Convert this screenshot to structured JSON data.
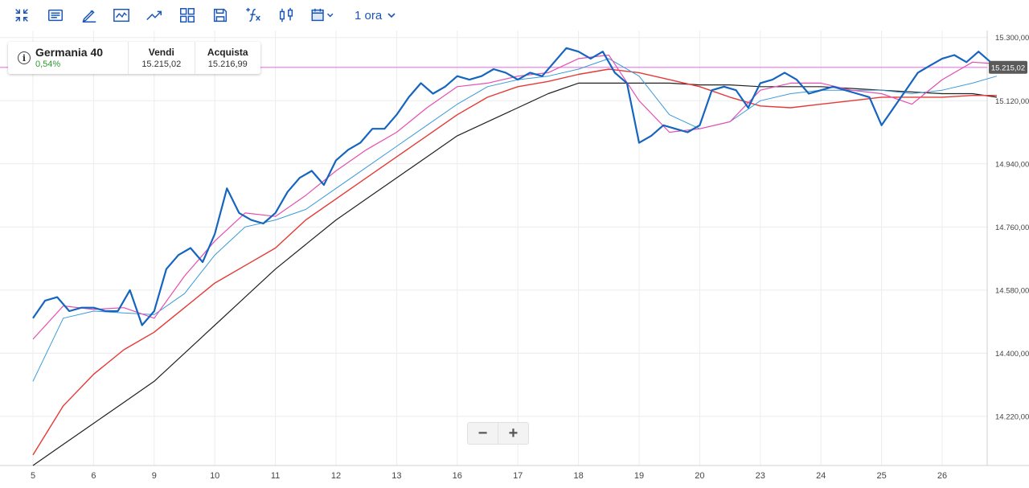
{
  "toolbar": {
    "icons": [
      "collapse-icon",
      "notes-icon",
      "pencil-icon",
      "indicator-icon",
      "trend-icon",
      "layout-grid-icon",
      "save-icon",
      "function-icon",
      "candlestick-icon",
      "calendar-icon"
    ],
    "interval_label": "1 ora"
  },
  "instrument": {
    "name": "Germania 40",
    "change": "0,54%",
    "sell_label": "Vendi",
    "sell_value": "15.215,02",
    "buy_label": "Acquista",
    "buy_value": "15.216,99"
  },
  "zoom": {
    "minus": "−",
    "plus": "+"
  },
  "colors": {
    "price": "#1565c0",
    "ma_short": "#e64fb0",
    "ma_mid": "#3a9ad9",
    "ma_long": "#e53935",
    "ma_longest": "#222222",
    "current_line": "#e879e8",
    "grid": "#ececec"
  },
  "chart_data": {
    "type": "line",
    "title": "Germania 40",
    "ylim": [
      14080,
      15320
    ],
    "yticks": [
      14220,
      14400,
      14580,
      14760,
      14940,
      15120,
      15300
    ],
    "ytick_labels": [
      "14.220,00",
      "14.400,00",
      "14.580,00",
      "14.760,00",
      "14.940,00",
      "15.120,00",
      "15.300,00"
    ],
    "xtick_labels": [
      "5",
      "6",
      "9",
      "10",
      "11",
      "12",
      "13",
      "16",
      "17",
      "18",
      "19",
      "20",
      "23",
      "24",
      "25",
      "26"
    ],
    "grid": true,
    "current_price": 15215.02,
    "current_price_label": "15.215,02",
    "series": [
      {
        "key": "price",
        "color_key": "price",
        "x": [
          0,
          0.2,
          0.4,
          0.6,
          0.8,
          1.0,
          1.2,
          1.4,
          1.6,
          1.8,
          2.0,
          2.2,
          2.4,
          2.6,
          2.8,
          3.0,
          3.2,
          3.4,
          3.6,
          3.8,
          4.0,
          4.2,
          4.4,
          4.6,
          4.8,
          5.0,
          5.2,
          5.4,
          5.6,
          5.8,
          6.0,
          6.2,
          6.4,
          6.6,
          6.8,
          7.0,
          7.2,
          7.4,
          7.6,
          7.8,
          8.0,
          8.2,
          8.4,
          8.6,
          8.8,
          9.0,
          9.2,
          9.4,
          9.6,
          9.8,
          10.0,
          10.2,
          10.4,
          10.6,
          10.8,
          11.0,
          11.2,
          11.4,
          11.6,
          11.8,
          12.0,
          12.2,
          12.4,
          12.6,
          12.8,
          13.0,
          13.2,
          13.4,
          13.6,
          13.8,
          14.0,
          14.2,
          14.4,
          14.6,
          14.8,
          15.0,
          15.2,
          15.4,
          15.6,
          15.8,
          15.9
        ],
        "y": [
          14500,
          14550,
          14560,
          14520,
          14530,
          14530,
          14520,
          14520,
          14580,
          14480,
          14520,
          14640,
          14680,
          14700,
          14660,
          14740,
          14870,
          14800,
          14780,
          14770,
          14800,
          14860,
          14900,
          14920,
          14880,
          14950,
          14980,
          15000,
          15040,
          15040,
          15080,
          15130,
          15170,
          15140,
          15160,
          15190,
          15180,
          15190,
          15210,
          15200,
          15180,
          15200,
          15190,
          15230,
          15270,
          15260,
          15240,
          15260,
          15200,
          15170,
          15000,
          15020,
          15050,
          15040,
          15030,
          15050,
          15150,
          15160,
          15150,
          15100,
          15170,
          15180,
          15200,
          15180,
          15140,
          15150,
          15160,
          15150,
          15140,
          15130,
          15050,
          15100,
          15150,
          15200,
          15220,
          15240,
          15250,
          15230,
          15260,
          15230,
          15215
        ]
      },
      {
        "key": "ma_short",
        "color_key": "ma_short",
        "x": [
          0,
          0.5,
          1.0,
          1.5,
          2.0,
          2.5,
          3.0,
          3.5,
          4.0,
          4.5,
          5.0,
          5.5,
          6.0,
          6.5,
          7.0,
          7.5,
          8.0,
          8.5,
          9.0,
          9.5,
          10.0,
          10.5,
          11.0,
          11.5,
          12.0,
          12.5,
          13.0,
          13.5,
          14.0,
          14.5,
          15.0,
          15.5,
          15.9
        ],
        "y": [
          14440,
          14535,
          14525,
          14530,
          14500,
          14620,
          14720,
          14800,
          14790,
          14850,
          14920,
          14980,
          15030,
          15100,
          15160,
          15170,
          15190,
          15200,
          15240,
          15250,
          15120,
          15030,
          15040,
          15060,
          15150,
          15170,
          15170,
          15150,
          15140,
          15110,
          15180,
          15230,
          15225
        ]
      },
      {
        "key": "ma_mid",
        "color_key": "ma_mid",
        "x": [
          0,
          0.5,
          1.0,
          1.5,
          2.0,
          2.5,
          3.0,
          3.5,
          4.0,
          4.5,
          5.0,
          5.5,
          6.0,
          6.5,
          7.0,
          7.5,
          8.0,
          8.5,
          9.0,
          9.5,
          10.0,
          10.5,
          11.0,
          11.5,
          12.0,
          12.5,
          13.0,
          13.5,
          14.0,
          14.5,
          15.0,
          15.5,
          15.9
        ],
        "y": [
          14320,
          14500,
          14520,
          14515,
          14510,
          14570,
          14680,
          14760,
          14780,
          14810,
          14870,
          14930,
          14990,
          15050,
          15110,
          15160,
          15180,
          15190,
          15210,
          15240,
          15190,
          15080,
          15040,
          15060,
          15120,
          15140,
          15150,
          15150,
          15150,
          15140,
          15150,
          15170,
          15190
        ]
      },
      {
        "key": "ma_long",
        "color_key": "ma_long",
        "x": [
          0,
          0.5,
          1.0,
          1.5,
          2.0,
          2.5,
          3.0,
          3.5,
          4.0,
          4.5,
          5.0,
          5.5,
          6.0,
          6.5,
          7.0,
          7.5,
          8.0,
          8.5,
          9.0,
          9.5,
          10.0,
          10.5,
          11.0,
          11.5,
          12.0,
          12.5,
          13.0,
          13.5,
          14.0,
          14.5,
          15.0,
          15.5,
          15.9
        ],
        "y": [
          14110,
          14250,
          14340,
          14410,
          14460,
          14530,
          14600,
          14650,
          14700,
          14780,
          14840,
          14900,
          14960,
          15020,
          15080,
          15130,
          15160,
          15175,
          15195,
          15210,
          15200,
          15180,
          15160,
          15130,
          15105,
          15100,
          15110,
          15120,
          15130,
          15130,
          15130,
          15135,
          15135
        ]
      },
      {
        "key": "ma_longest",
        "color_key": "ma_longest",
        "x": [
          0,
          0.5,
          1.0,
          1.5,
          2.0,
          2.5,
          3.0,
          3.5,
          4.0,
          4.5,
          5.0,
          5.5,
          6.0,
          6.5,
          7.0,
          7.5,
          8.0,
          8.5,
          9.0,
          9.5,
          10.0,
          10.5,
          11.0,
          11.5,
          12.0,
          12.5,
          13.0,
          13.5,
          14.0,
          14.5,
          15.0,
          15.5,
          15.9
        ],
        "y": [
          14080,
          14140,
          14200,
          14260,
          14320,
          14400,
          14480,
          14560,
          14640,
          14710,
          14780,
          14840,
          14900,
          14960,
          15020,
          15060,
          15100,
          15140,
          15170,
          15170,
          15170,
          15170,
          15165,
          15165,
          15160,
          15160,
          15160,
          15155,
          15150,
          15145,
          15140,
          15140,
          15130
        ]
      }
    ]
  }
}
